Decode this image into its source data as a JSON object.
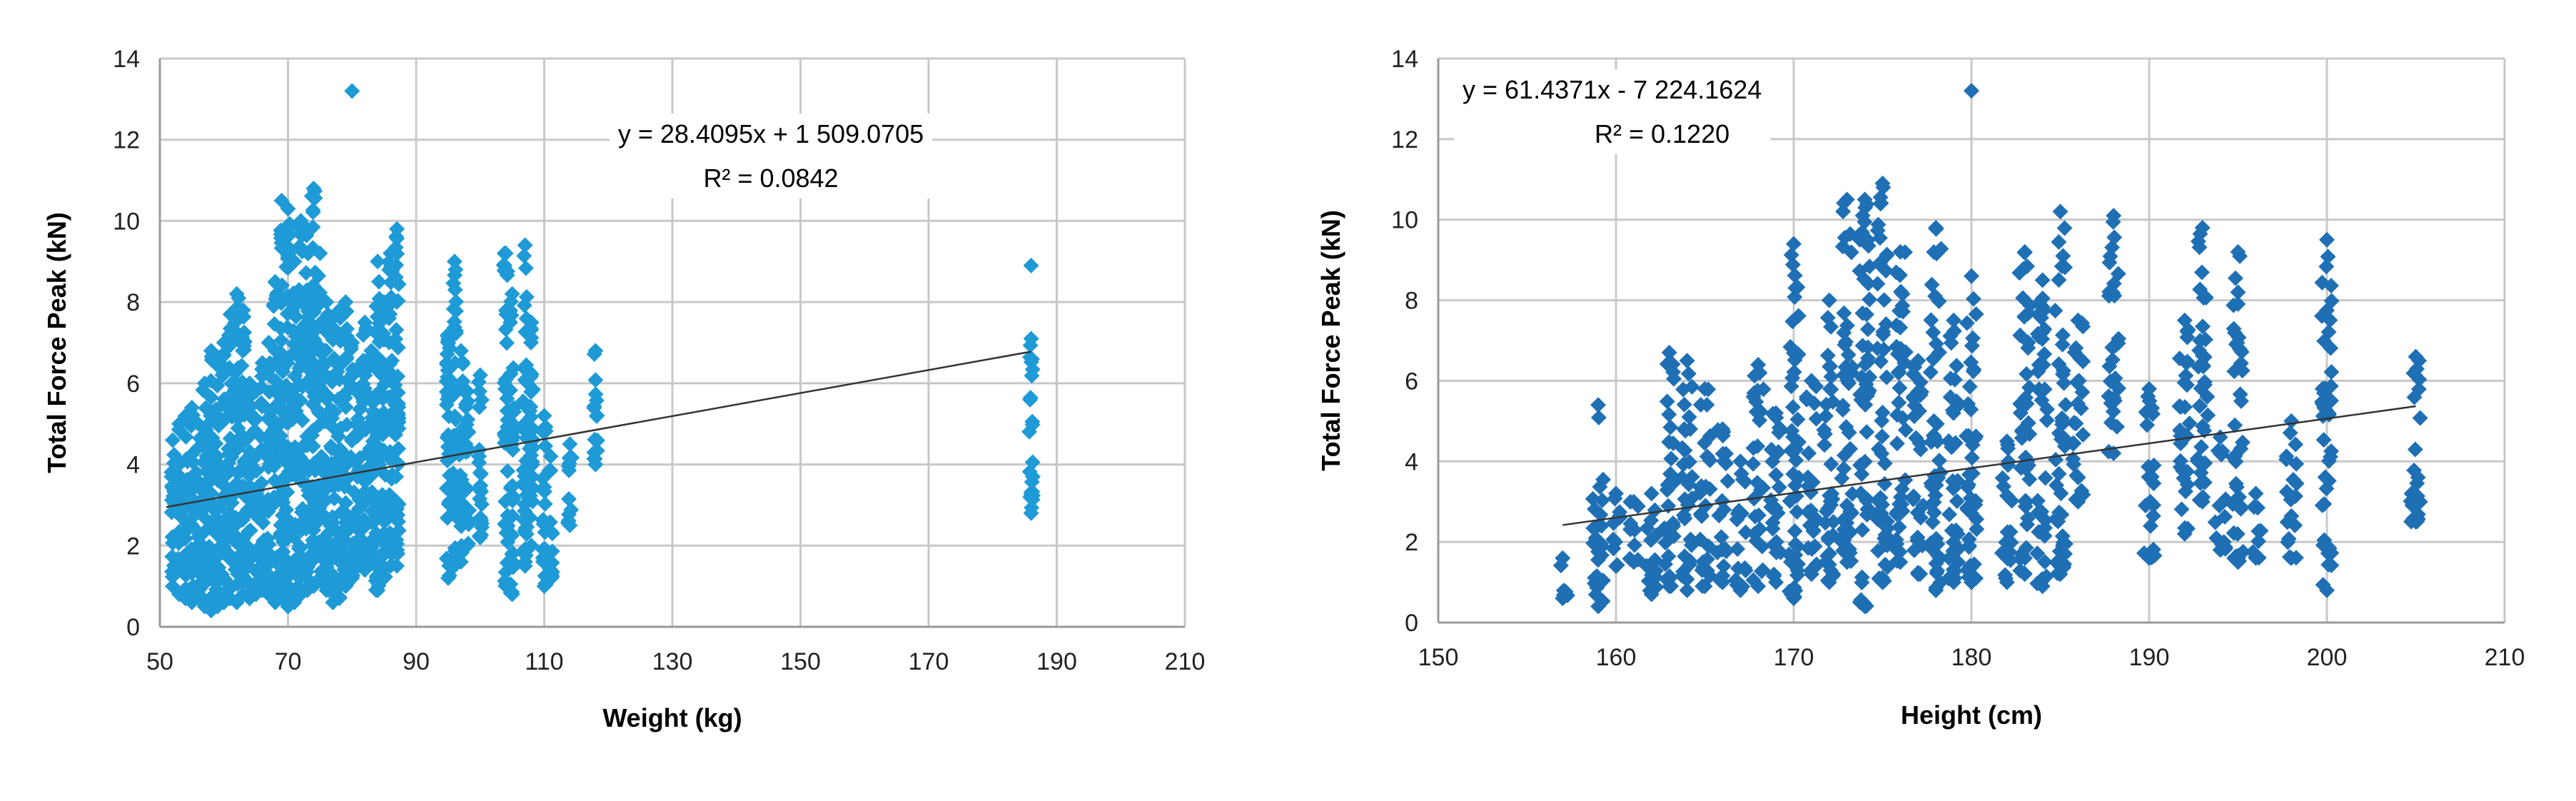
{
  "chart_data": [
    {
      "type": "scatter",
      "xlabel": "Weight (kg)",
      "ylabel": "Total Force Peak (kN)",
      "xlim": [
        50,
        210
      ],
      "ylim": [
        0,
        14
      ],
      "xticks": [
        "50",
        "70",
        "90",
        "110",
        "130",
        "150",
        "170",
        "190",
        "210"
      ],
      "yticks": [
        "0",
        "2",
        "4",
        "6",
        "8",
        "10",
        "12",
        "14"
      ],
      "grid": true,
      "marker_color": "#1e9ad6",
      "trendline": {
        "equation": "y = 28.4095x + 1 509.0705",
        "r2": "R² = 0.0842",
        "x": [
          51,
          186
        ],
        "y": [
          2.95,
          6.78
        ]
      },
      "clusters": [
        {
          "x": 52,
          "ymin": 1.0,
          "ymax": 4.6
        },
        {
          "x": 53,
          "ymin": 0.8,
          "ymax": 5.0
        },
        {
          "x": 54,
          "ymin": 0.7,
          "ymax": 5.2
        },
        {
          "x": 55,
          "ymin": 0.6,
          "ymax": 5.4
        },
        {
          "x": 56,
          "ymin": 0.7,
          "ymax": 5.0
        },
        {
          "x": 57,
          "ymin": 0.5,
          "ymax": 6.0
        },
        {
          "x": 58,
          "ymin": 0.4,
          "ymax": 6.8
        },
        {
          "x": 59,
          "ymin": 0.5,
          "ymax": 6.5
        },
        {
          "x": 60,
          "ymin": 0.6,
          "ymax": 7.0
        },
        {
          "x": 61,
          "ymin": 0.7,
          "ymax": 7.7
        },
        {
          "x": 62,
          "ymin": 0.6,
          "ymax": 8.2
        },
        {
          "x": 63,
          "ymin": 0.8,
          "ymax": 7.8
        },
        {
          "x": 64,
          "ymin": 0.7,
          "ymax": 6.0
        },
        {
          "x": 65,
          "ymin": 0.8,
          "ymax": 5.8
        },
        {
          "x": 66,
          "ymin": 0.9,
          "ymax": 6.5
        },
        {
          "x": 67,
          "ymin": 0.8,
          "ymax": 7.0
        },
        {
          "x": 68,
          "ymin": 0.6,
          "ymax": 8.5
        },
        {
          "x": 69,
          "ymin": 0.7,
          "ymax": 10.5
        },
        {
          "x": 70,
          "ymin": 0.5,
          "ymax": 10.3
        },
        {
          "x": 71,
          "ymin": 0.6,
          "ymax": 9.0
        },
        {
          "x": 72,
          "ymin": 0.8,
          "ymax": 10.0
        },
        {
          "x": 73,
          "ymin": 0.9,
          "ymax": 9.8
        },
        {
          "x": 74,
          "ymin": 1.0,
          "ymax": 10.8
        },
        {
          "x": 75,
          "ymin": 1.2,
          "ymax": 9.2
        },
        {
          "x": 76,
          "ymin": 0.9,
          "ymax": 8.0
        },
        {
          "x": 77,
          "ymin": 0.6,
          "ymax": 7.6
        },
        {
          "x": 78,
          "ymin": 0.7,
          "ymax": 7.8
        },
        {
          "x": 79,
          "ymin": 1.0,
          "ymax": 8.0
        },
        {
          "x": 80,
          "ymin": 1.2,
          "ymax": 7.0
        },
        {
          "x": 81,
          "ymin": 1.5,
          "ymax": 6.4
        },
        {
          "x": 82,
          "ymin": 1.4,
          "ymax": 7.5
        },
        {
          "x": 83,
          "ymin": 1.6,
          "ymax": 6.8
        },
        {
          "x": 84,
          "ymin": 0.9,
          "ymax": 9.0
        },
        {
          "x": 85,
          "ymin": 1.2,
          "ymax": 8.0
        },
        {
          "x": 86,
          "ymin": 1.5,
          "ymax": 9.2
        },
        {
          "x": 87,
          "ymin": 1.5,
          "ymax": 9.8
        },
        {
          "x": 95,
          "ymin": 1.2,
          "ymax": 7.2
        },
        {
          "x": 96,
          "ymin": 1.5,
          "ymax": 9.0
        },
        {
          "x": 97,
          "ymin": 1.6,
          "ymax": 6.8
        },
        {
          "x": 98,
          "ymin": 2.0,
          "ymax": 5.8
        },
        {
          "x": 100,
          "ymin": 2.2,
          "ymax": 6.2
        },
        {
          "x": 104,
          "ymin": 1.0,
          "ymax": 9.2
        },
        {
          "x": 105,
          "ymin": 0.8,
          "ymax": 8.2
        },
        {
          "x": 107,
          "ymin": 1.5,
          "ymax": 9.4
        },
        {
          "x": 108,
          "ymin": 2.0,
          "ymax": 7.5
        },
        {
          "x": 110,
          "ymin": 1.0,
          "ymax": 5.2
        },
        {
          "x": 111,
          "ymin": 1.2,
          "ymax": 4.2
        },
        {
          "x": 114,
          "ymin": 2.5,
          "ymax": 4.5
        },
        {
          "x": 118,
          "ymin": 4.0,
          "ymax": 6.8
        },
        {
          "x": 186,
          "ymin": 2.8,
          "ymax": 7.1
        }
      ],
      "outliers": [
        [
          80,
          13.2
        ],
        [
          186,
          8.9
        ]
      ]
    },
    {
      "type": "scatter",
      "xlabel": "Height (cm)",
      "ylabel": "Total Force Peak (kN)",
      "xlim": [
        150,
        210
      ],
      "ylim": [
        0,
        14
      ],
      "xticks": [
        "150",
        "160",
        "170",
        "180",
        "190",
        "200",
        "210"
      ],
      "yticks": [
        "0",
        "2",
        "4",
        "6",
        "8",
        "10",
        "12",
        "14"
      ],
      "grid": true,
      "marker_color": "#1f6fb4",
      "trendline": {
        "equation": "y = 61.4371x - 7 224.1624",
        "r2": "R² = 0.1220",
        "x": [
          157,
          205
        ],
        "y": [
          2.42,
          5.37
        ]
      },
      "clusters": [
        {
          "x": 157,
          "ymin": 0.6,
          "ymax": 1.6
        },
        {
          "x": 159,
          "ymin": 0.4,
          "ymax": 5.4
        },
        {
          "x": 160,
          "ymin": 1.4,
          "ymax": 3.2
        },
        {
          "x": 161,
          "ymin": 1.5,
          "ymax": 3.0
        },
        {
          "x": 162,
          "ymin": 0.7,
          "ymax": 3.2
        },
        {
          "x": 163,
          "ymin": 0.9,
          "ymax": 6.7
        },
        {
          "x": 164,
          "ymin": 0.8,
          "ymax": 6.5
        },
        {
          "x": 165,
          "ymin": 0.9,
          "ymax": 5.8
        },
        {
          "x": 166,
          "ymin": 1.0,
          "ymax": 4.8
        },
        {
          "x": 167,
          "ymin": 0.8,
          "ymax": 4.0
        },
        {
          "x": 168,
          "ymin": 0.9,
          "ymax": 6.4
        },
        {
          "x": 169,
          "ymin": 1.0,
          "ymax": 5.2
        },
        {
          "x": 170,
          "ymin": 0.6,
          "ymax": 9.4
        },
        {
          "x": 171,
          "ymin": 1.2,
          "ymax": 6.0
        },
        {
          "x": 172,
          "ymin": 1.0,
          "ymax": 8.0
        },
        {
          "x": 173,
          "ymin": 1.5,
          "ymax": 10.5
        },
        {
          "x": 174,
          "ymin": 0.4,
          "ymax": 10.5
        },
        {
          "x": 175,
          "ymin": 1.0,
          "ymax": 10.9
        },
        {
          "x": 176,
          "ymin": 1.5,
          "ymax": 9.2
        },
        {
          "x": 177,
          "ymin": 1.2,
          "ymax": 6.5
        },
        {
          "x": 178,
          "ymin": 0.8,
          "ymax": 9.8
        },
        {
          "x": 179,
          "ymin": 1.0,
          "ymax": 7.5
        },
        {
          "x": 180,
          "ymin": 1.0,
          "ymax": 8.6
        },
        {
          "x": 182,
          "ymin": 1.0,
          "ymax": 4.5
        },
        {
          "x": 183,
          "ymin": 1.2,
          "ymax": 9.2
        },
        {
          "x": 184,
          "ymin": 0.9,
          "ymax": 8.5
        },
        {
          "x": 185,
          "ymin": 1.2,
          "ymax": 10.2
        },
        {
          "x": 186,
          "ymin": 3.0,
          "ymax": 7.5
        },
        {
          "x": 188,
          "ymin": 4.2,
          "ymax": 10.1
        },
        {
          "x": 190,
          "ymin": 1.6,
          "ymax": 5.8
        },
        {
          "x": 192,
          "ymin": 2.2,
          "ymax": 7.5
        },
        {
          "x": 193,
          "ymin": 3.0,
          "ymax": 9.8
        },
        {
          "x": 194,
          "ymin": 1.8,
          "ymax": 4.6
        },
        {
          "x": 195,
          "ymin": 1.5,
          "ymax": 9.2
        },
        {
          "x": 196,
          "ymin": 1.6,
          "ymax": 3.2
        },
        {
          "x": 198,
          "ymin": 1.6,
          "ymax": 5.0
        },
        {
          "x": 200,
          "ymin": 0.8,
          "ymax": 9.5
        },
        {
          "x": 205,
          "ymin": 2.5,
          "ymax": 6.6
        }
      ],
      "outliers": [
        [
          180,
          13.2
        ]
      ]
    }
  ]
}
